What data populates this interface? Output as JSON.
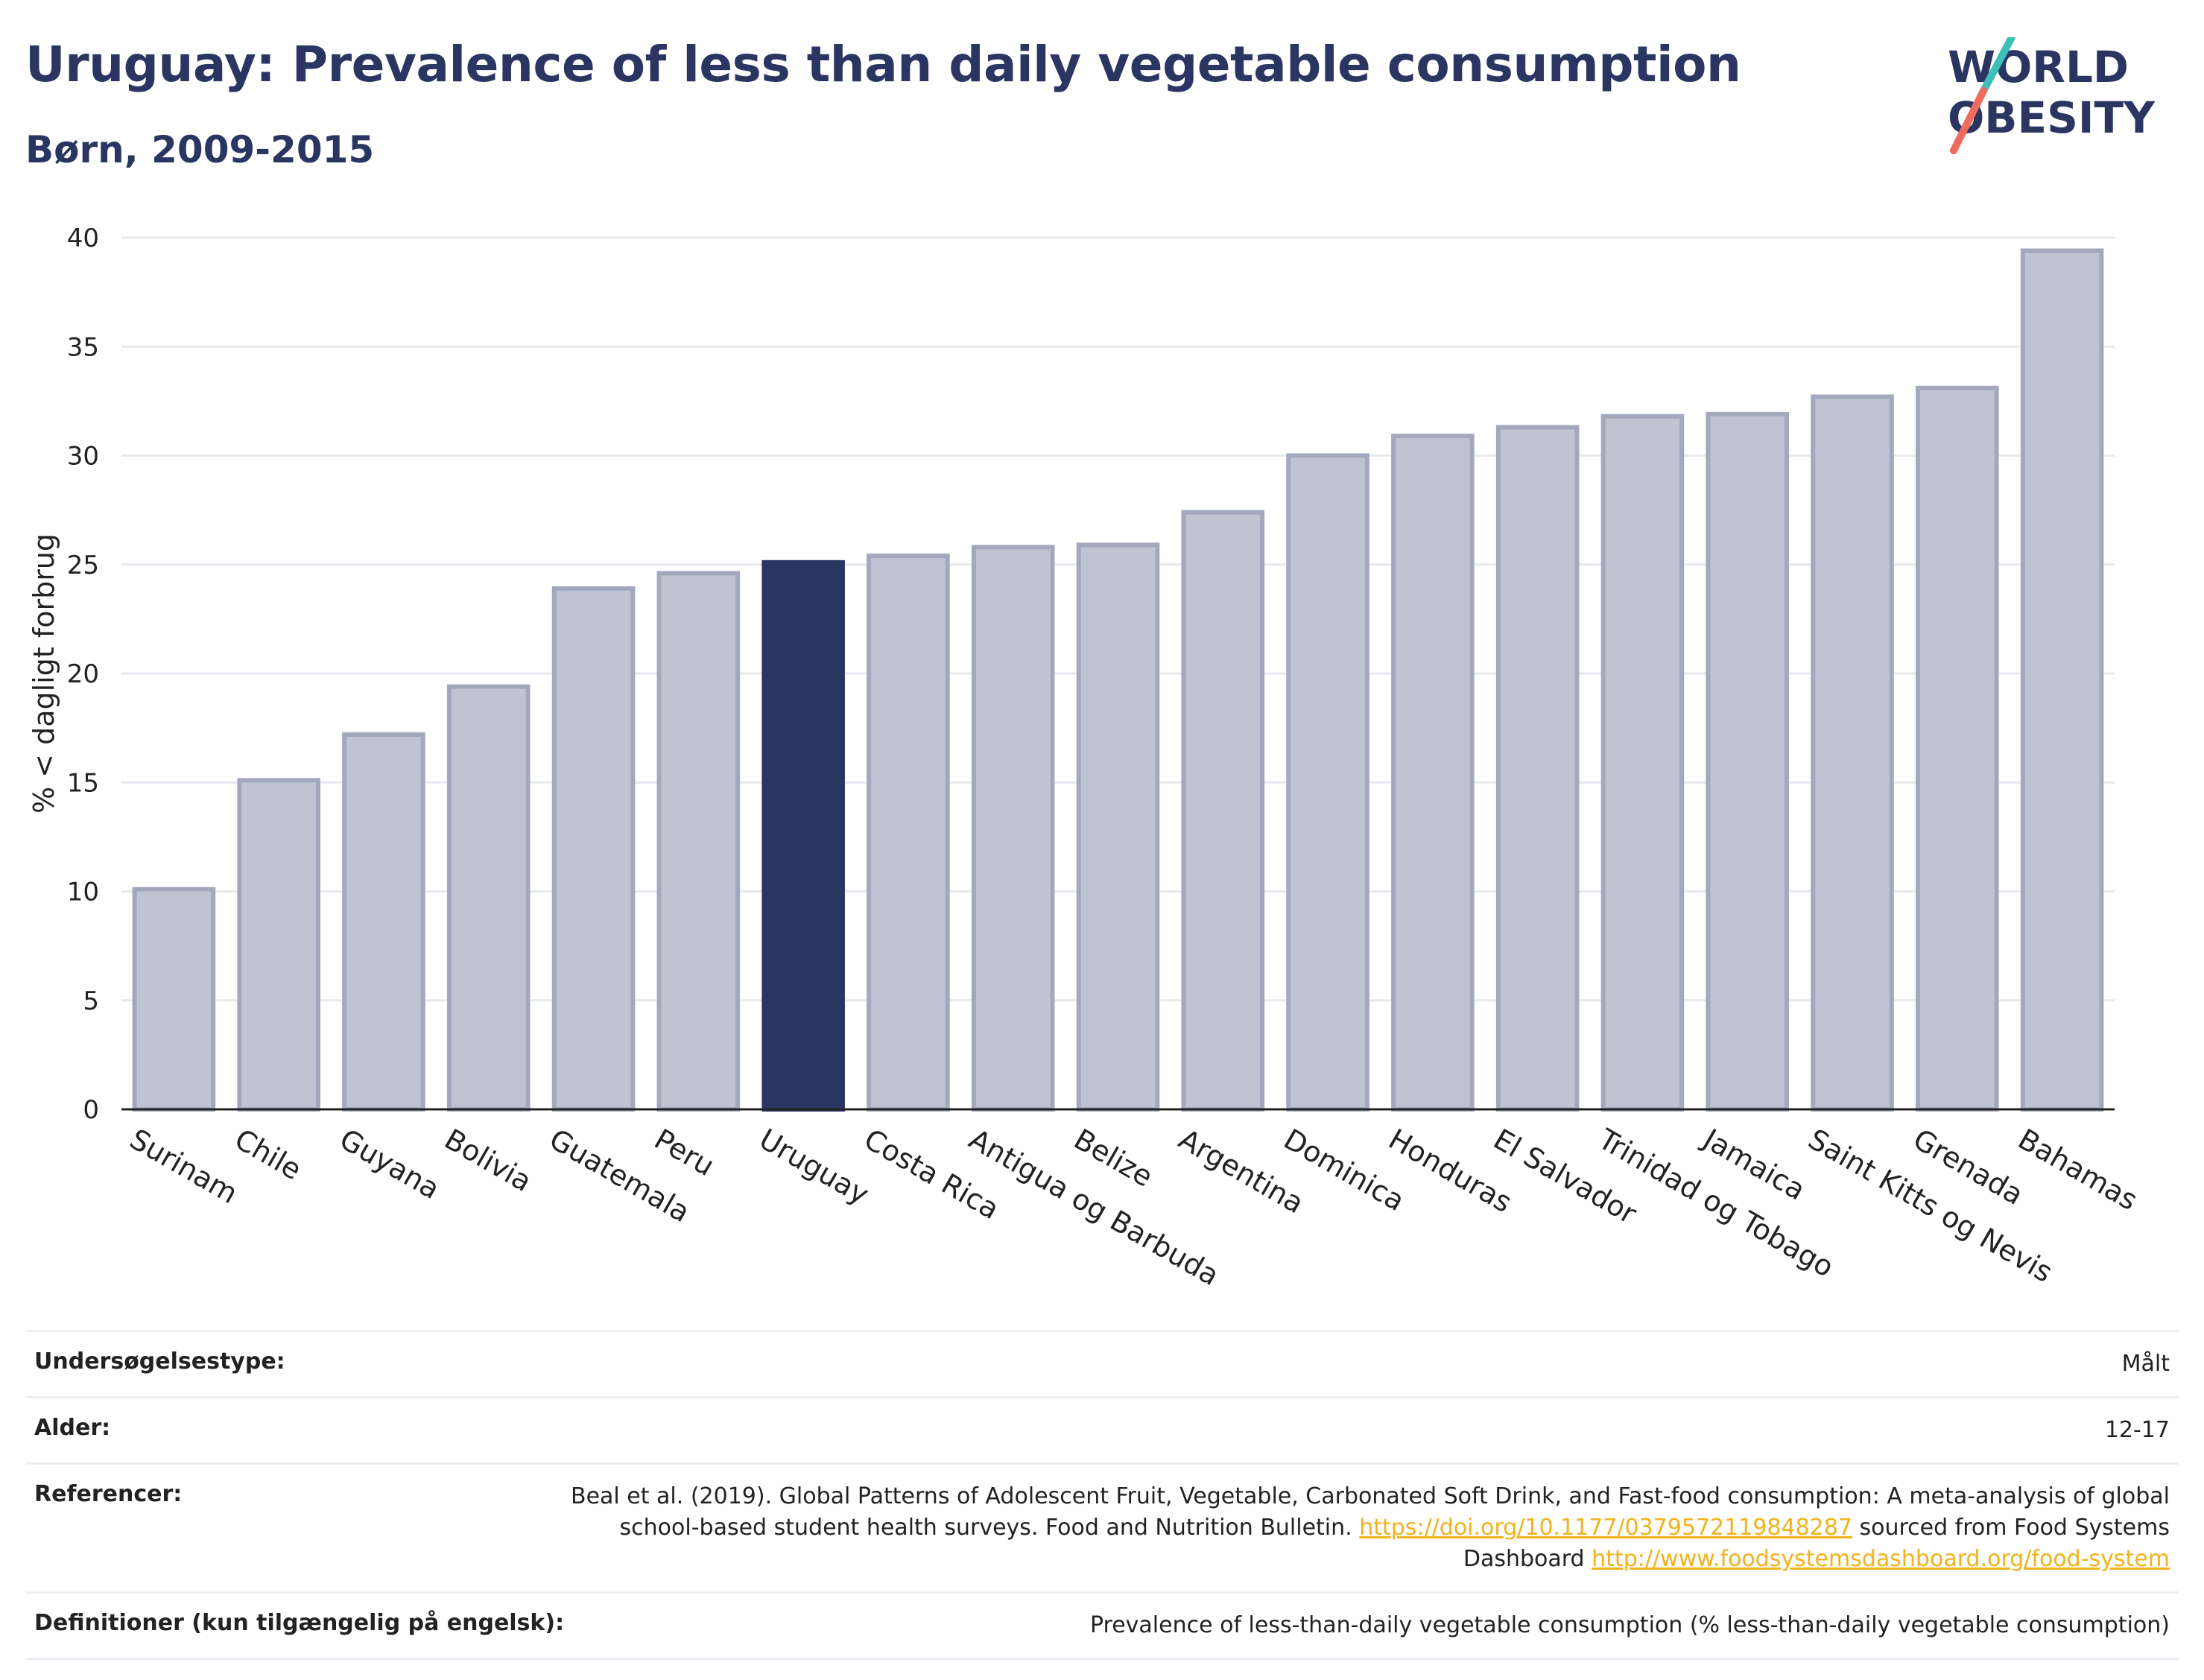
{
  "header": {
    "title": "Uruguay: Prevalence of less than daily vegetable consumption",
    "subtitle": "Børn, 2009-2015"
  },
  "logo": {
    "line1": "WORLD",
    "line2": "OBESITY",
    "colors": {
      "text": "#2a3562",
      "slash_teal": "#3cc0b8",
      "slash_coral": "#ee6b5e"
    }
  },
  "colors": {
    "bar_default": "#c0c3d1",
    "bar_outline": "#a3a8bd",
    "bar_highlight": "#2a3562",
    "grid": "#e8e9ef",
    "axis": "#222222"
  },
  "chart_data": {
    "type": "bar",
    "title": "Uruguay: Prevalence of less than daily vegetable consumption",
    "subtitle": "Børn, 2009-2015",
    "xlabel": "",
    "ylabel": "% < dagligt forbrug",
    "ylim": [
      0,
      40
    ],
    "yticks": [
      0,
      5,
      10,
      15,
      20,
      25,
      30,
      35,
      40
    ],
    "grid": true,
    "highlight": "Uruguay",
    "categories": [
      "Surinam",
      "Chile",
      "Guyana",
      "Bolivia",
      "Guatemala",
      "Peru",
      "Uruguay",
      "Costa Rica",
      "Antigua og Barbuda",
      "Belize",
      "Argentina",
      "Dominica",
      "Honduras",
      "El Salvador",
      "Trinidad og Tobago",
      "Jamaica",
      "Saint Kitts og Nevis",
      "Grenada",
      "Bahamas"
    ],
    "values": [
      10.1,
      15.1,
      17.2,
      19.4,
      23.9,
      24.6,
      25.1,
      25.4,
      25.8,
      25.9,
      27.4,
      30.0,
      30.9,
      31.3,
      31.8,
      31.9,
      32.7,
      33.1,
      39.4
    ]
  },
  "info": {
    "rows": [
      {
        "label": "Undersøgelsestype:",
        "value": "Målt"
      },
      {
        "label": "Alder:",
        "value": "12-17"
      },
      {
        "label": "Referencer:",
        "value_pre": "Beal et al. (2019). Global Patterns of Adolescent Fruit, Vegetable, Carbonated Soft Drink, and Fast-food consumption: A meta-analysis of global school-based student health surveys. Food and Nutrition Bulletin.",
        "link1": "https://doi.org/10.1177/0379572119848287",
        "value_mid": "sourced from Food Systems Dashboard",
        "link2": "http://www.foodsystemsdashboard.org/food-system"
      },
      {
        "label": "Definitioner (kun tilgængelig på engelsk):",
        "value": "Prevalence of less-than-daily vegetable consumption (% less-than-daily vegetable consumption)"
      }
    ]
  }
}
